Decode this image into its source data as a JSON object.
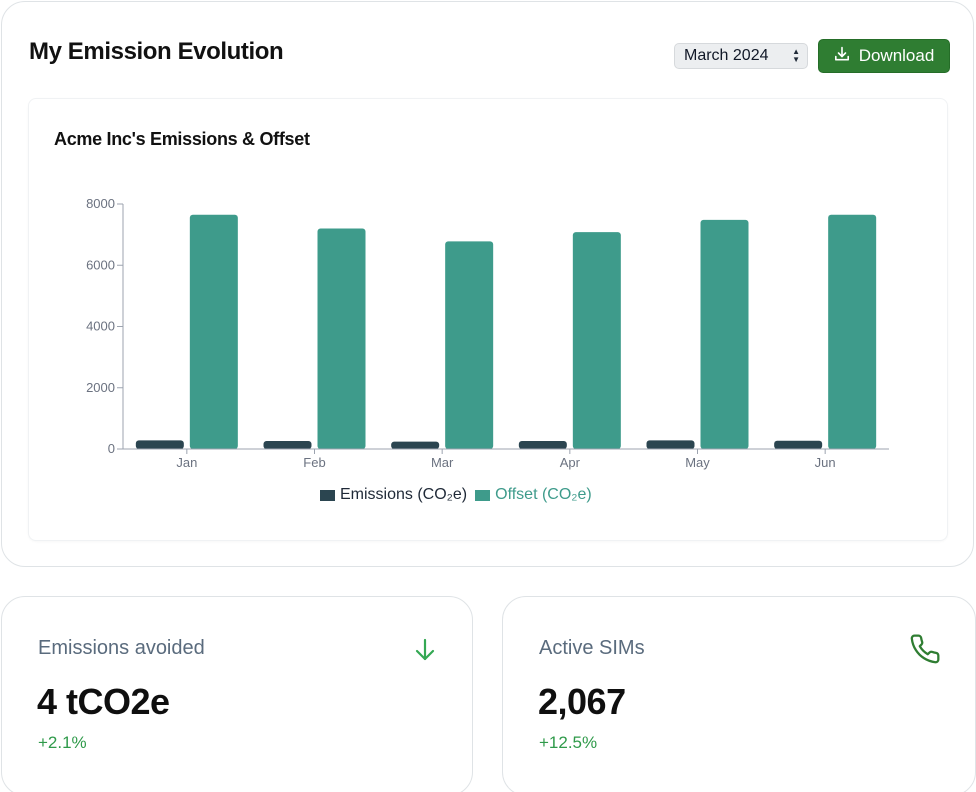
{
  "header": {
    "title": "My Emission Evolution",
    "period_value": "March 2024",
    "download_label": "Download"
  },
  "colors": {
    "brand_green": "#2f7d32",
    "emissions": "#2b4550",
    "offset": "#3e9b8b",
    "positive_change": "#2f9a4a"
  },
  "chart_data": {
    "type": "bar",
    "title": "Acme Inc's Emissions & Offset",
    "categories": [
      "Jan",
      "Feb",
      "Mar",
      "Apr",
      "May",
      "Jun"
    ],
    "series": [
      {
        "name": "Emissions (CO₂e)",
        "values": [
          280,
          260,
          240,
          260,
          280,
          270
        ]
      },
      {
        "name": "Offset (CO₂e)",
        "values": [
          7650,
          7200,
          6780,
          7080,
          7480,
          7650
        ]
      }
    ],
    "yticks": [
      "0",
      "2000",
      "4000",
      "6000",
      "8000"
    ],
    "ylim": [
      0,
      8000
    ],
    "xlabel": "",
    "ylabel": "",
    "legend_position": "bottom",
    "grid": false
  },
  "stats": [
    {
      "label": "Emissions avoided",
      "value": "4 tCO2e",
      "change": "+2.1%",
      "icon": "arrow-down-icon"
    },
    {
      "label": "Active SIMs",
      "value": "2,067",
      "change": "+12.5%",
      "icon": "phone-icon"
    }
  ]
}
